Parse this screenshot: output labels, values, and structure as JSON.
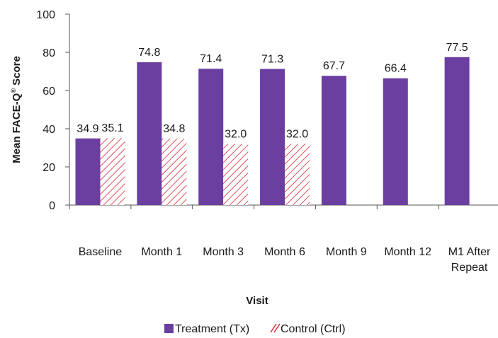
{
  "chart_data": {
    "type": "bar",
    "categories": [
      "Baseline",
      "Month 1",
      "Month 3",
      "Month 6",
      "Month 9",
      "Month 12",
      "M1 After Repeat"
    ],
    "category_lines": [
      [
        "Baseline"
      ],
      [
        "Month 1"
      ],
      [
        "Month 3"
      ],
      [
        "Month 6"
      ],
      [
        "Month 9"
      ],
      [
        "Month 12"
      ],
      [
        "M1 After",
        "Repeat"
      ]
    ],
    "series": [
      {
        "name": "Treatment (Tx)",
        "color": "#6b3fa0",
        "pattern": "solid",
        "values": [
          34.9,
          74.8,
          71.4,
          71.3,
          67.7,
          66.4,
          77.5
        ]
      },
      {
        "name": "Control (Ctrl)",
        "color": "#d9212e",
        "pattern": "diagonal-hatch",
        "values": [
          35.1,
          34.8,
          32.0,
          32.0,
          null,
          null,
          null
        ]
      }
    ],
    "value_labels": [
      [
        "34.9",
        "74.8",
        "71.4",
        "71.3",
        "67.7",
        "66.4",
        "77.5"
      ],
      [
        "35.1",
        "34.8",
        "32.0",
        "32.0",
        null,
        null,
        null
      ]
    ],
    "xlabel": "Visit",
    "ylabel_main": "Mean FACE-Q",
    "ylabel_sup": "®",
    "ylabel_tail": " Score",
    "ylim": [
      0,
      100
    ],
    "yticks": [
      "0",
      "20",
      "40",
      "60",
      "80",
      "100"
    ],
    "grid": false,
    "legend_position": "bottom"
  }
}
